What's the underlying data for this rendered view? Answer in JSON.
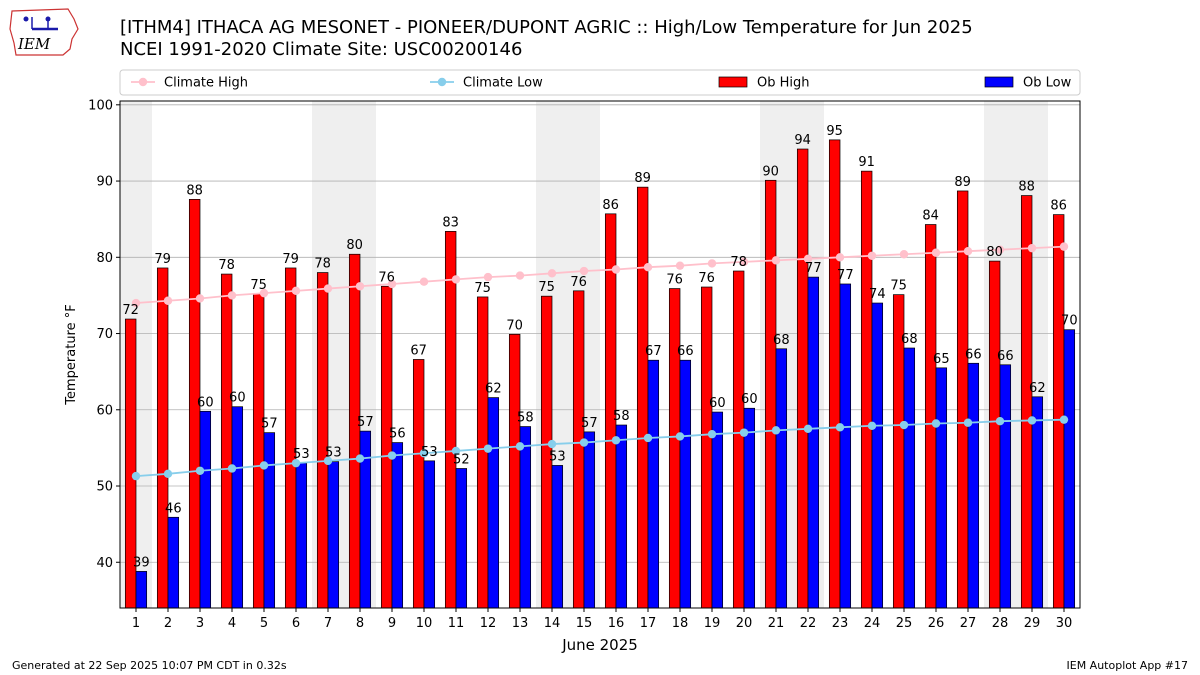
{
  "header": {
    "logo_text": "IEM",
    "title_line1": "[ITHM4] ITHACA AG MESONET - PIONEER/DUPONT AGRIC :: High/Low Temperature for Jun 2025",
    "title_line2": "NCEI 1991-2020 Climate Site: USC00200146"
  },
  "footer": {
    "generated": "Generated at 22 Sep 2025 10:07 PM CDT in 0.32s",
    "app": "IEM Autoplot App #17"
  },
  "colors": {
    "ob_high": "#ff0000",
    "ob_low": "#0000ff",
    "climate_high": "#ffc0cb",
    "climate_low": "#87ceeb",
    "weekend_shade": "#efefef",
    "grid": "#b0b0b0"
  },
  "chart_data": {
    "type": "bar",
    "xlabel": "June 2025",
    "ylabel": "Temperature °F",
    "ylim": [
      34,
      100.5
    ],
    "yticks": [
      40,
      50,
      60,
      70,
      80,
      90,
      100
    ],
    "grid": "horizontal",
    "legend": "top, above plot",
    "categories": [
      "1",
      "2",
      "3",
      "4",
      "5",
      "6",
      "7",
      "8",
      "9",
      "10",
      "11",
      "12",
      "13",
      "14",
      "15",
      "16",
      "17",
      "18",
      "19",
      "20",
      "21",
      "22",
      "23",
      "24",
      "25",
      "26",
      "27",
      "28",
      "29",
      "30"
    ],
    "shaded_days": [
      1,
      7,
      8,
      14,
      15,
      21,
      22,
      28,
      29
    ],
    "series": [
      {
        "name": "Climate High",
        "kind": "line",
        "values": [
          74.0,
          74.3,
          74.6,
          75.0,
          75.3,
          75.6,
          75.9,
          76.2,
          76.5,
          76.8,
          77.1,
          77.4,
          77.6,
          77.9,
          78.2,
          78.4,
          78.7,
          78.9,
          79.2,
          79.4,
          79.6,
          79.8,
          80.0,
          80.2,
          80.4,
          80.6,
          80.8,
          81.0,
          81.2,
          81.4
        ]
      },
      {
        "name": "Climate Low",
        "kind": "line",
        "values": [
          51.3,
          51.6,
          52.0,
          52.3,
          52.7,
          53.0,
          53.3,
          53.6,
          54.0,
          54.3,
          54.6,
          54.9,
          55.2,
          55.5,
          55.7,
          56.0,
          56.3,
          56.5,
          56.8,
          57.0,
          57.3,
          57.5,
          57.7,
          57.9,
          58.0,
          58.2,
          58.3,
          58.5,
          58.6,
          58.7
        ]
      },
      {
        "name": "Ob High",
        "kind": "bar",
        "values": [
          71.9,
          78.6,
          87.6,
          77.8,
          75.2,
          78.6,
          78.0,
          80.4,
          76.2,
          66.6,
          83.4,
          74.8,
          69.9,
          74.9,
          75.6,
          85.7,
          89.2,
          75.9,
          76.1,
          78.2,
          90.1,
          94.2,
          95.4,
          91.3,
          75.1,
          84.3,
          88.7,
          79.5,
          88.1,
          85.6
        ],
        "labels": [
          72,
          79,
          88,
          78,
          75,
          79,
          78,
          80,
          76,
          67,
          83,
          75,
          70,
          75,
          76,
          86,
          89,
          76,
          76,
          78,
          90,
          94,
          95,
          91,
          75,
          84,
          89,
          80,
          88,
          86
        ]
      },
      {
        "name": "Ob Low",
        "kind": "bar",
        "values": [
          38.8,
          45.9,
          59.8,
          60.4,
          57.0,
          53.0,
          53.2,
          57.2,
          55.7,
          53.3,
          52.3,
          61.6,
          57.8,
          52.7,
          57.1,
          58.0,
          66.5,
          66.5,
          59.7,
          60.2,
          68.0,
          77.4,
          76.5,
          74.0,
          68.1,
          65.5,
          66.1,
          65.9,
          61.7,
          70.5
        ],
        "labels": [
          39,
          46,
          60,
          60,
          57,
          53,
          53,
          57,
          56,
          53,
          52,
          62,
          58,
          53,
          57,
          58,
          67,
          66,
          60,
          60,
          68,
          77,
          77,
          74,
          68,
          65,
          66,
          66,
          62,
          70
        ]
      }
    ]
  }
}
